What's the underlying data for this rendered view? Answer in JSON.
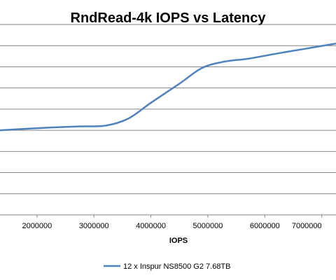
{
  "chart_data": {
    "type": "line",
    "title": "RndRead-4k IOPS vs Latency",
    "xlabel": "IOPS",
    "ylabel": "",
    "xlim": [
      1350000,
      7250000
    ],
    "x_ticks": [
      {
        "value": 2000000,
        "label": "2000000"
      },
      {
        "value": 3000000,
        "label": "3000000"
      },
      {
        "value": 4000000,
        "label": "4000000"
      },
      {
        "value": 5000000,
        "label": "5000000"
      },
      {
        "value": 6000000,
        "label": "6000000"
      },
      {
        "value": 7000000,
        "label": "7000000"
      }
    ],
    "ylim": [
      0,
      9
    ],
    "y_gridlines": [
      1,
      2,
      3,
      4,
      5,
      6,
      7,
      8,
      9
    ],
    "grid": true,
    "legend_position": "bottom",
    "series": [
      {
        "name": "12 x Inspur NS8500 G2 7.68TB",
        "color": "#4f81bd",
        "x": [
          1350000,
          2000000,
          2700000,
          3200000,
          3600000,
          4000000,
          4500000,
          4900000,
          5300000,
          5700000,
          6200000,
          6700000,
          7250000
        ],
        "y": [
          4.0,
          4.1,
          4.18,
          4.22,
          4.55,
          5.3,
          6.2,
          6.95,
          7.25,
          7.38,
          7.62,
          7.85,
          8.1
        ]
      }
    ]
  }
}
